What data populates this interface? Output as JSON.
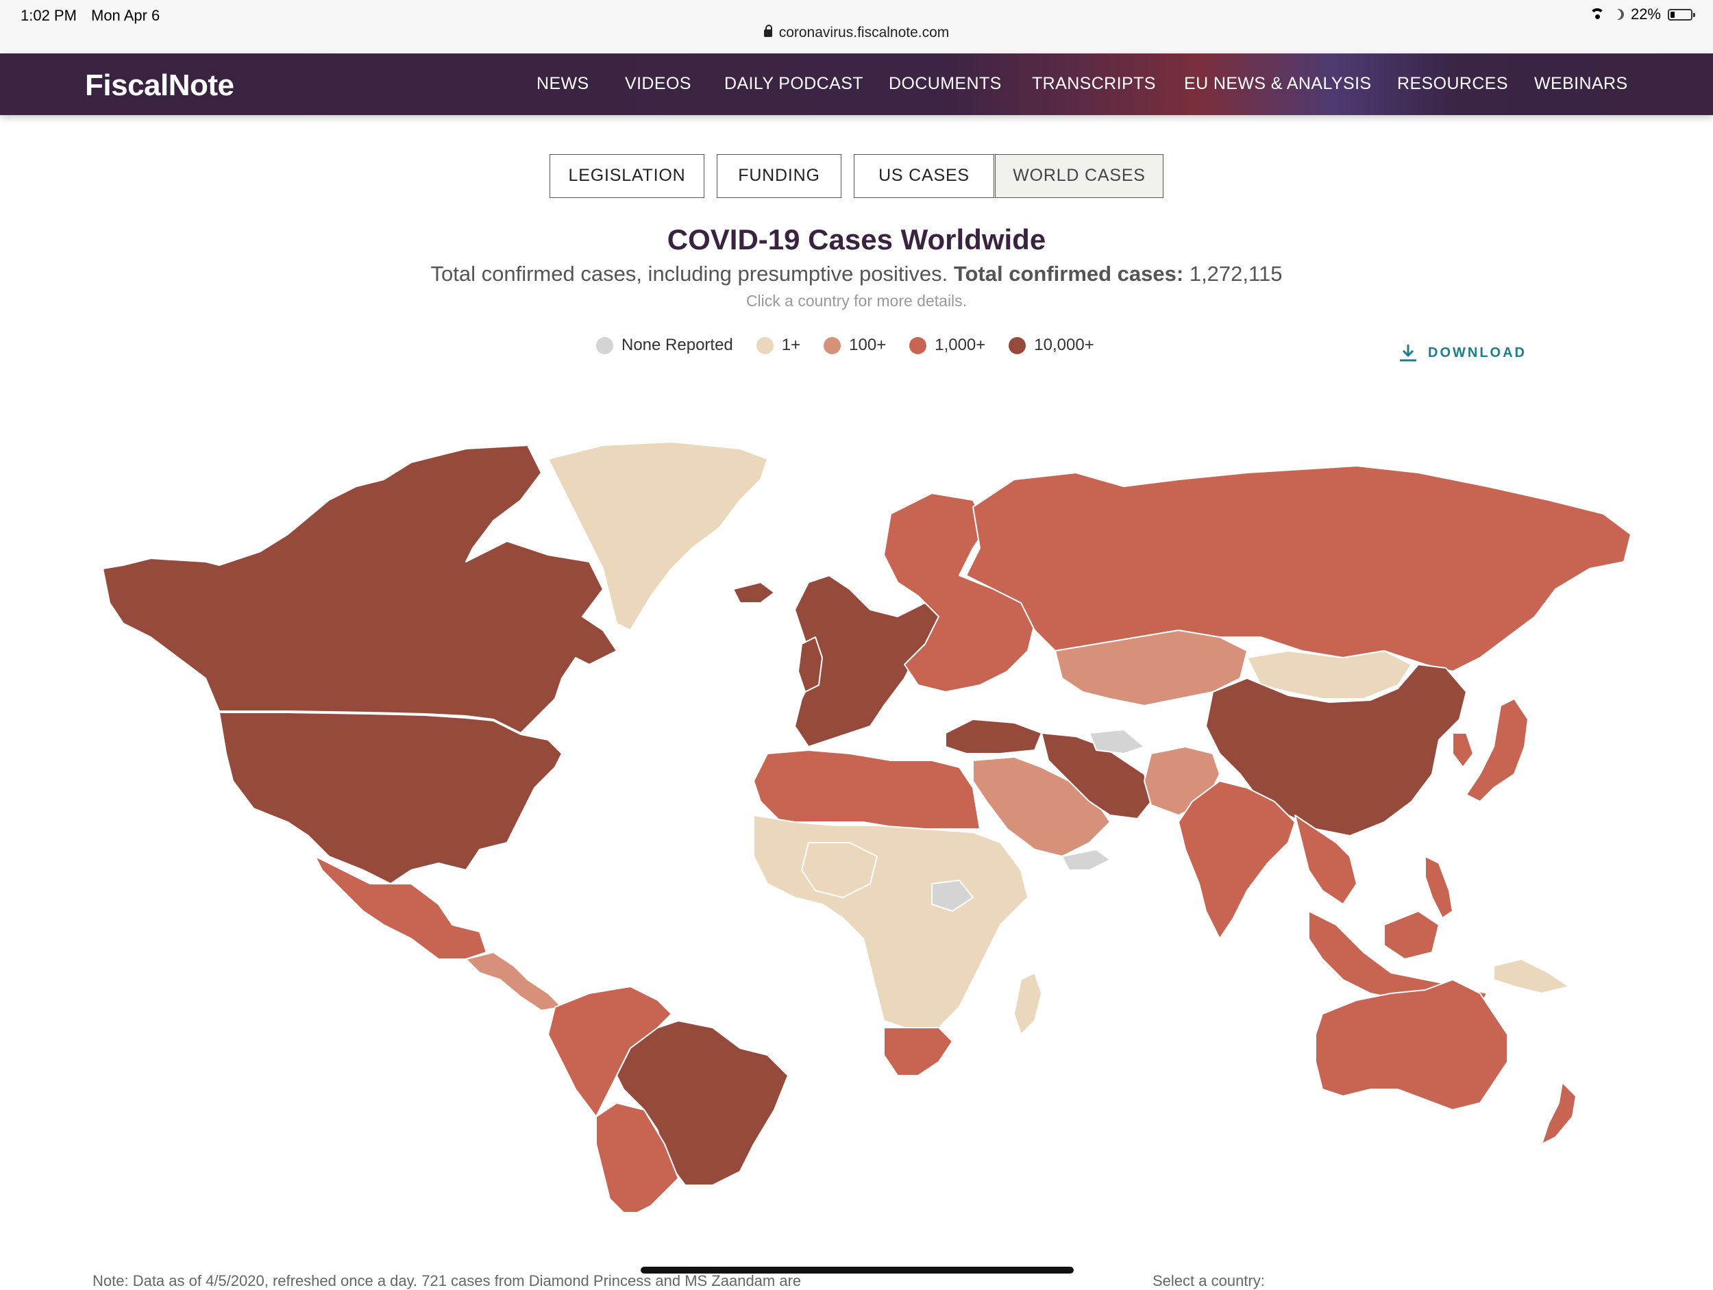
{
  "status_bar": {
    "time": "1:02 PM",
    "date": "Mon Apr 6",
    "url": "coronavirus.fiscalnote.com",
    "battery": "22%",
    "battery_level": 0.22
  },
  "header": {
    "logo": "FiscalNote",
    "nav": [
      "NEWS",
      "VIDEOS",
      "DAILY PODCAST",
      "DOCUMENTS",
      "TRANSCRIPTS",
      "EU NEWS & ANALYSIS",
      "RESOURCES",
      "WEBINARS"
    ]
  },
  "tabs": [
    {
      "label": "LEGISLATION",
      "active": false
    },
    {
      "label": "FUNDING",
      "active": false
    },
    {
      "label": "US CASES",
      "active": false
    },
    {
      "label": "WORLD CASES",
      "active": true
    }
  ],
  "main": {
    "title": "COVID-19 Cases Worldwide",
    "subtitle_prefix": "Total confirmed cases, including presumptive positives. ",
    "total_label": "Total confirmed cases:",
    "total_value": "1,272,115",
    "hint": "Click a country for more details.",
    "download": "DOWNLOAD"
  },
  "legend": [
    {
      "label": "None Reported",
      "color": "#d4d4d4"
    },
    {
      "label": "1+",
      "color": "#ead7bc"
    },
    {
      "label": "100+",
      "color": "#d7917a"
    },
    {
      "label": "1,000+",
      "color": "#c86552"
    },
    {
      "label": "10,000+",
      "color": "#954a3c"
    }
  ],
  "map_regions": [
    {
      "name": "Alaska / Canada",
      "bin": "10,000+"
    },
    {
      "name": "United States",
      "bin": "10,000+"
    },
    {
      "name": "Greenland",
      "bin": "1+"
    },
    {
      "name": "Mexico",
      "bin": "1,000+"
    },
    {
      "name": "Central America",
      "bin": "100+"
    },
    {
      "name": "Brazil",
      "bin": "10,000+"
    },
    {
      "name": "Peru / Ecuador",
      "bin": "1,000+"
    },
    {
      "name": "Argentina / Chile",
      "bin": "1,000+"
    },
    {
      "name": "Western Europe",
      "bin": "10,000+"
    },
    {
      "name": "Russia",
      "bin": "1,000+"
    },
    {
      "name": "Kazakhstan",
      "bin": "100+"
    },
    {
      "name": "Mongolia",
      "bin": "1+"
    },
    {
      "name": "China",
      "bin": "10,000+"
    },
    {
      "name": "Iran",
      "bin": "10,000+"
    },
    {
      "name": "Turkey",
      "bin": "10,000+"
    },
    {
      "name": "India",
      "bin": "1,000+"
    },
    {
      "name": "Japan",
      "bin": "1,000+"
    },
    {
      "name": "Southeast Asia",
      "bin": "1,000+"
    },
    {
      "name": "North Africa",
      "bin": "1,000+"
    },
    {
      "name": "Sub-Saharan Africa",
      "bin": "1+"
    },
    {
      "name": "South Africa",
      "bin": "1,000+"
    },
    {
      "name": "Australia",
      "bin": "1,000+"
    },
    {
      "name": "New Zealand",
      "bin": "1,000+"
    },
    {
      "name": "Yemen / South Sudan / Turkmenistan",
      "bin": "None Reported"
    }
  ],
  "footer": {
    "note": "Note: Data as of 4/5/2020, refreshed once a day. 721 cases from Diamond Princess and MS Zaandam are",
    "select_label": "Select a country:"
  }
}
